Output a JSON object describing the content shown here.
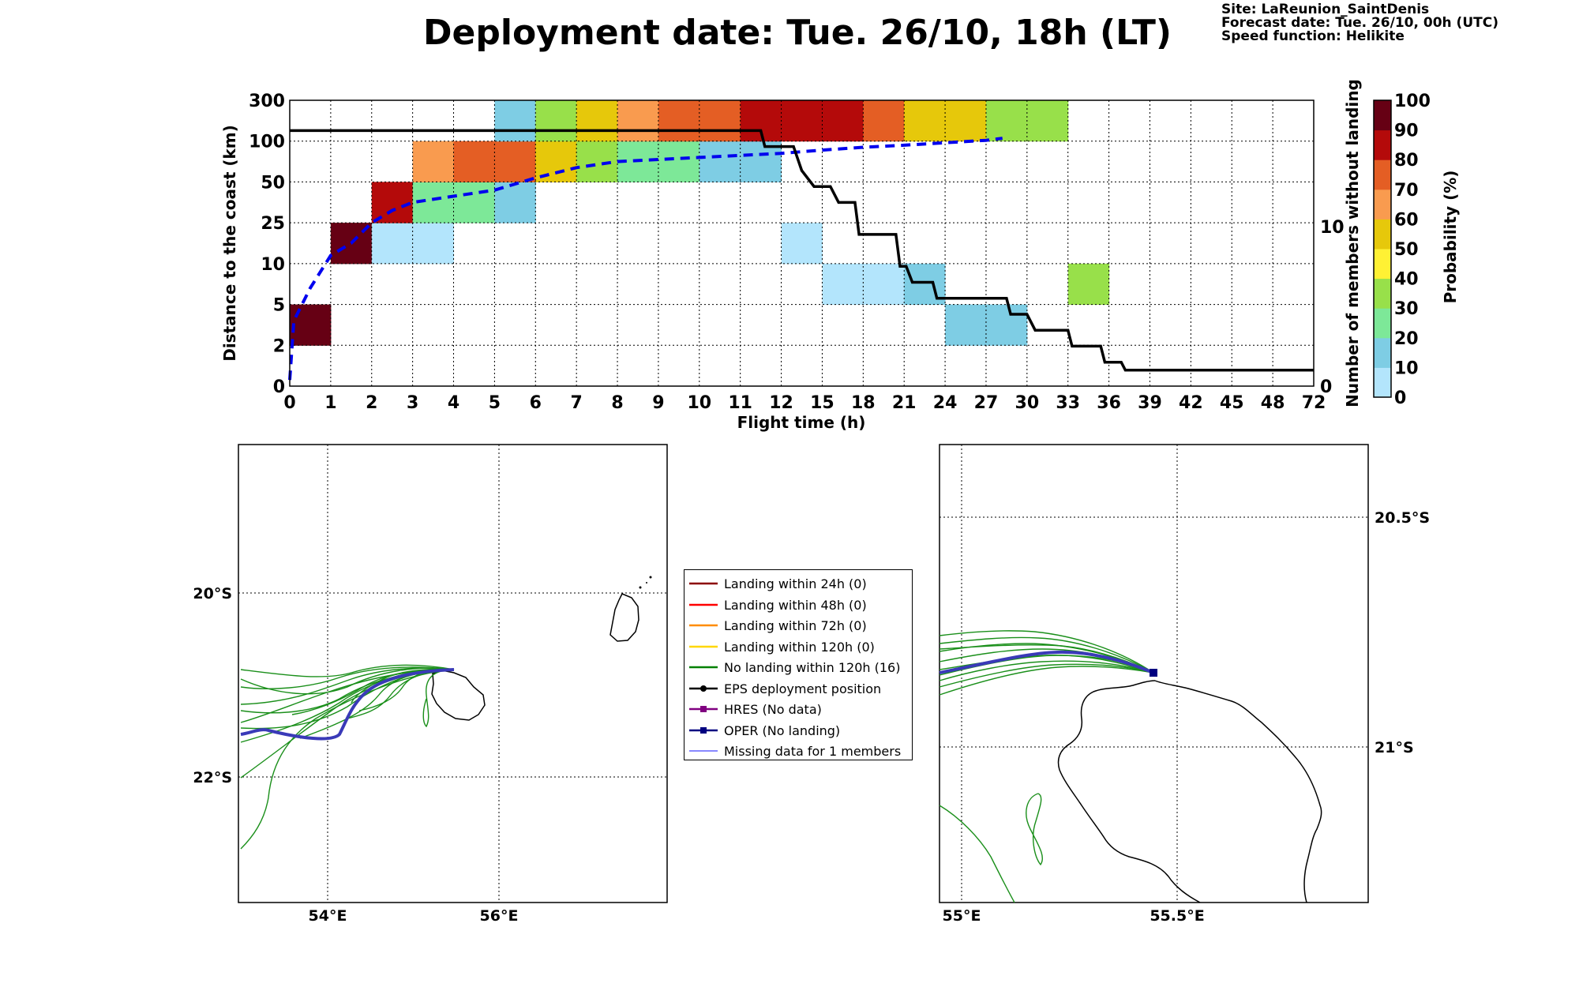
{
  "title": "Deployment date: Tue. 26/10, 18h (LT)",
  "info": {
    "site": "Site: LaReunion_SaintDenis",
    "forecast": "Forecast date: Tue. 26/10, 00h (UTC)",
    "speed": "Speed function: Helikite"
  },
  "chart_data": [
    {
      "type": "heatmap",
      "xlabel": "Flight time (h)",
      "ylabel": "Distance to the coast (km)",
      "y2label": "Number of members without landing",
      "x_ticks": [
        "0",
        "1",
        "2",
        "3",
        "4",
        "5",
        "6",
        "7",
        "8",
        "9",
        "10",
        "11",
        "12",
        "15",
        "18",
        "21",
        "24",
        "27",
        "30",
        "33",
        "36",
        "39",
        "42",
        "45",
        "48",
        "72"
      ],
      "y_ticks": [
        "0",
        "2",
        "5",
        "10",
        "25",
        "50",
        "100",
        "300"
      ],
      "y2_ticks": [
        "0",
        "10"
      ],
      "y2_range": [
        0,
        17.9
      ],
      "colorbar": {
        "label": "Probability (%)",
        "ticks": [
          "0",
          "10",
          "20",
          "30",
          "40",
          "50",
          "60",
          "70",
          "80",
          "90",
          "100"
        ],
        "colors": [
          "#b3e5fc",
          "#7ecde4",
          "#7de898",
          "#98e04a",
          "#fff134",
          "#e6c80b",
          "#f99b4f",
          "#e45e24",
          "#b40a0a",
          "#660014"
        ]
      },
      "cells": [
        {
          "col": 0,
          "row": 1,
          "bin": 9
        },
        {
          "col": 1,
          "row": 3,
          "bin": 9
        },
        {
          "col": 2,
          "row": 3,
          "bin": 0
        },
        {
          "col": 3,
          "row": 3,
          "bin": 0
        },
        {
          "col": 2,
          "row": 4,
          "bin": 8
        },
        {
          "col": 3,
          "row": 4,
          "bin": 2
        },
        {
          "col": 4,
          "row": 4,
          "bin": 2
        },
        {
          "col": 5,
          "row": 4,
          "bin": 1
        },
        {
          "col": 3,
          "row": 5,
          "bin": 6
        },
        {
          "col": 4,
          "row": 5,
          "bin": 7
        },
        {
          "col": 5,
          "row": 5,
          "bin": 7
        },
        {
          "col": 6,
          "row": 5,
          "bin": 5
        },
        {
          "col": 7,
          "row": 5,
          "bin": 3
        },
        {
          "col": 8,
          "row": 5,
          "bin": 2
        },
        {
          "col": 9,
          "row": 5,
          "bin": 2
        },
        {
          "col": 10,
          "row": 5,
          "bin": 1
        },
        {
          "col": 11,
          "row": 5,
          "bin": 1
        },
        {
          "col": 5,
          "row": 6,
          "bin": 1
        },
        {
          "col": 6,
          "row": 6,
          "bin": 3
        },
        {
          "col": 7,
          "row": 6,
          "bin": 5
        },
        {
          "col": 8,
          "row": 6,
          "bin": 6
        },
        {
          "col": 9,
          "row": 6,
          "bin": 7
        },
        {
          "col": 10,
          "row": 6,
          "bin": 7
        },
        {
          "col": 11,
          "row": 6,
          "bin": 8
        },
        {
          "col": 12,
          "row": 6,
          "bin": 8
        },
        {
          "col": 13,
          "row": 6,
          "bin": 8
        },
        {
          "col": 14,
          "row": 6,
          "bin": 7
        },
        {
          "col": 15,
          "row": 6,
          "bin": 5
        },
        {
          "col": 16,
          "row": 6,
          "bin": 5
        },
        {
          "col": 17,
          "row": 6,
          "bin": 3
        },
        {
          "col": 18,
          "row": 6,
          "bin": 3
        },
        {
          "col": 12,
          "row": 3,
          "bin": 0
        },
        {
          "col": 13,
          "row": 2,
          "bin": 0
        },
        {
          "col": 14,
          "row": 2,
          "bin": 0
        },
        {
          "col": 15,
          "row": 2,
          "bin": 1
        },
        {
          "col": 16,
          "row": 1,
          "bin": 1
        },
        {
          "col": 17,
          "row": 1,
          "bin": 1
        },
        {
          "col": 19,
          "row": 2,
          "bin": 3
        }
      ],
      "mean_distance_curve": {
        "name": "mean distance",
        "points": [
          [
            0,
            0.15
          ],
          [
            0.1,
            1.6
          ],
          [
            0.5,
            2.4
          ],
          [
            1,
            3.2
          ],
          [
            1.5,
            3.5
          ],
          [
            2,
            4.0
          ],
          [
            2.5,
            4.3
          ],
          [
            3,
            4.5
          ],
          [
            4,
            4.65
          ],
          [
            5,
            4.8
          ],
          [
            6,
            5.1
          ],
          [
            7,
            5.35
          ],
          [
            8,
            5.5
          ],
          [
            9,
            5.55
          ],
          [
            10,
            5.6
          ],
          [
            11,
            5.65
          ],
          [
            12,
            5.7
          ],
          [
            13,
            5.78
          ],
          [
            14,
            5.85
          ],
          [
            15,
            5.9
          ],
          [
            16,
            5.96
          ],
          [
            17,
            6.02
          ],
          [
            17.4,
            6.07
          ]
        ]
      },
      "members_without_landing": {
        "name": "members without landing",
        "points": [
          [
            0,
            16
          ],
          [
            11.5,
            16
          ],
          [
            11.6,
            15
          ],
          [
            12.3,
            15
          ],
          [
            12.5,
            13.5
          ],
          [
            12.8,
            12.5
          ],
          [
            13.2,
            12.5
          ],
          [
            13.4,
            11.5
          ],
          [
            13.8,
            11.5
          ],
          [
            13.9,
            9.5
          ],
          [
            14.8,
            9.5
          ],
          [
            14.9,
            7.5
          ],
          [
            15.05,
            7.5
          ],
          [
            15.2,
            6.5
          ],
          [
            15.7,
            6.5
          ],
          [
            15.8,
            5.5
          ],
          [
            17.5,
            5.5
          ],
          [
            17.6,
            4.5
          ],
          [
            18.0,
            4.5
          ],
          [
            18.2,
            3.5
          ],
          [
            19.0,
            3.5
          ],
          [
            19.1,
            2.5
          ],
          [
            19.8,
            2.5
          ],
          [
            19.9,
            1.5
          ],
          [
            20.3,
            1.5
          ],
          [
            20.4,
            1.0
          ],
          [
            25,
            1.0
          ]
        ]
      }
    },
    {
      "type": "map",
      "name": "left-map",
      "lon_ticks": [
        "54°E",
        "56°E"
      ],
      "lat_ticks": [
        "20°S",
        "22°S"
      ],
      "member_count": 16
    },
    {
      "type": "map",
      "name": "right-map",
      "lon_ticks": [
        "55°E",
        "55.5°E"
      ],
      "lat_ticks": [
        "20.5°S",
        "21°S"
      ]
    }
  ],
  "legend": [
    {
      "label": "Landing within 24h (0)",
      "color": "#8b0000",
      "style": "line"
    },
    {
      "label": "Landing within 48h (0)",
      "color": "#ff0000",
      "style": "line"
    },
    {
      "label": "Landing within 72h (0)",
      "color": "#ff8c00",
      "style": "line"
    },
    {
      "label": "Landing within 120h (0)",
      "color": "#ffd700",
      "style": "line"
    },
    {
      "label": "No landing within 120h (16)",
      "color": "#008000",
      "style": "line"
    },
    {
      "label": "EPS deployment position",
      "color": "#000000",
      "style": "dot"
    },
    {
      "label": "HRES (No data)",
      "color": "#800080",
      "style": "square"
    },
    {
      "label": "OPER (No landing)",
      "color": "#000080",
      "style": "square"
    },
    {
      "label": "Missing data for 1 members",
      "color": "#4040ff",
      "style": "thin"
    }
  ]
}
